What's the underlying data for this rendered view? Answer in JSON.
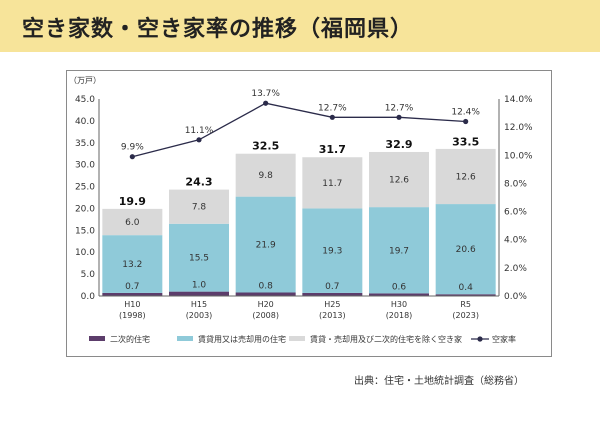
{
  "title": "空き家数・空き家率の推移（福岡県）",
  "source": "出典：住宅・土地統計調査（総務省）",
  "colors": {
    "secondary": "#5c3d6b",
    "rental_sale": "#8fcad9",
    "other": "#d9d9d9",
    "rate_line": "#2b2b4a",
    "title_bg": "#f7e49a"
  },
  "chart_data": {
    "type": "bar",
    "stacked": true,
    "categories": [
      "H10\n(1998)",
      "H15\n(2003)",
      "H20\n(2008)",
      "H25\n(2013)",
      "H30\n(2018)",
      "R5\n(2023)"
    ],
    "unit_label": "（万戸）",
    "series": [
      {
        "name": "二次的住宅",
        "values": [
          0.7,
          1.0,
          0.8,
          0.7,
          0.6,
          0.4
        ]
      },
      {
        "name": "賃貸用又は売却用の住宅",
        "values": [
          13.2,
          15.5,
          21.9,
          19.3,
          19.7,
          20.6
        ]
      },
      {
        "name": "賃貸・売却用及び二次的住宅を除く空き家",
        "values": [
          6.0,
          7.8,
          9.8,
          11.7,
          12.6,
          12.6
        ]
      }
    ],
    "totals": [
      19.9,
      24.3,
      32.5,
      31.7,
      32.9,
      33.5
    ],
    "rate": {
      "name": "空家率",
      "values": [
        9.9,
        11.1,
        13.7,
        12.7,
        12.7,
        12.4
      ]
    },
    "ylim": [
      0,
      45
    ],
    "yticks": [
      "0.0",
      "5.0",
      "10.0",
      "15.0",
      "20.0",
      "25.0",
      "30.0",
      "35.0",
      "40.0",
      "45.0"
    ],
    "y2lim": [
      0,
      14
    ],
    "y2ticks": [
      "0.0%",
      "2.0%",
      "4.0%",
      "6.0%",
      "8.0%",
      "10.0%",
      "12.0%",
      "14.0%"
    ],
    "legend_position": "bottom"
  }
}
